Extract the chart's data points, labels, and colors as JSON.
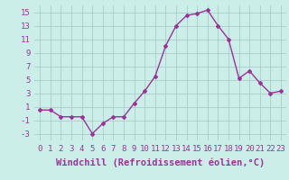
{
  "x": [
    0,
    1,
    2,
    3,
    4,
    5,
    6,
    7,
    8,
    9,
    10,
    11,
    12,
    13,
    14,
    15,
    16,
    17,
    18,
    19,
    20,
    21,
    22,
    23
  ],
  "y": [
    0.5,
    0.5,
    -0.5,
    -0.5,
    -0.5,
    -3.0,
    -1.5,
    -0.5,
    -0.5,
    1.5,
    3.3,
    5.5,
    10.0,
    13.0,
    14.5,
    14.8,
    15.3,
    13.0,
    11.0,
    5.2,
    6.3,
    4.5,
    3.0,
    3.3
  ],
  "line_color": "#993399",
  "marker": "D",
  "marker_size": 2,
  "bg_color": "#cceee8",
  "grid_color": "#aacccc",
  "xlabel": "Windchill (Refroidissement éolien,°C)",
  "ylabel": "",
  "xlim": [
    -0.5,
    23.5
  ],
  "ylim": [
    -4,
    16
  ],
  "yticks": [
    -3,
    -1,
    1,
    3,
    5,
    7,
    9,
    11,
    13,
    15
  ],
  "xticks": [
    0,
    1,
    2,
    3,
    4,
    5,
    6,
    7,
    8,
    9,
    10,
    11,
    12,
    13,
    14,
    15,
    16,
    17,
    18,
    19,
    20,
    21,
    22,
    23
  ],
  "tick_fontsize": 6.5,
  "xlabel_fontsize": 7.5
}
